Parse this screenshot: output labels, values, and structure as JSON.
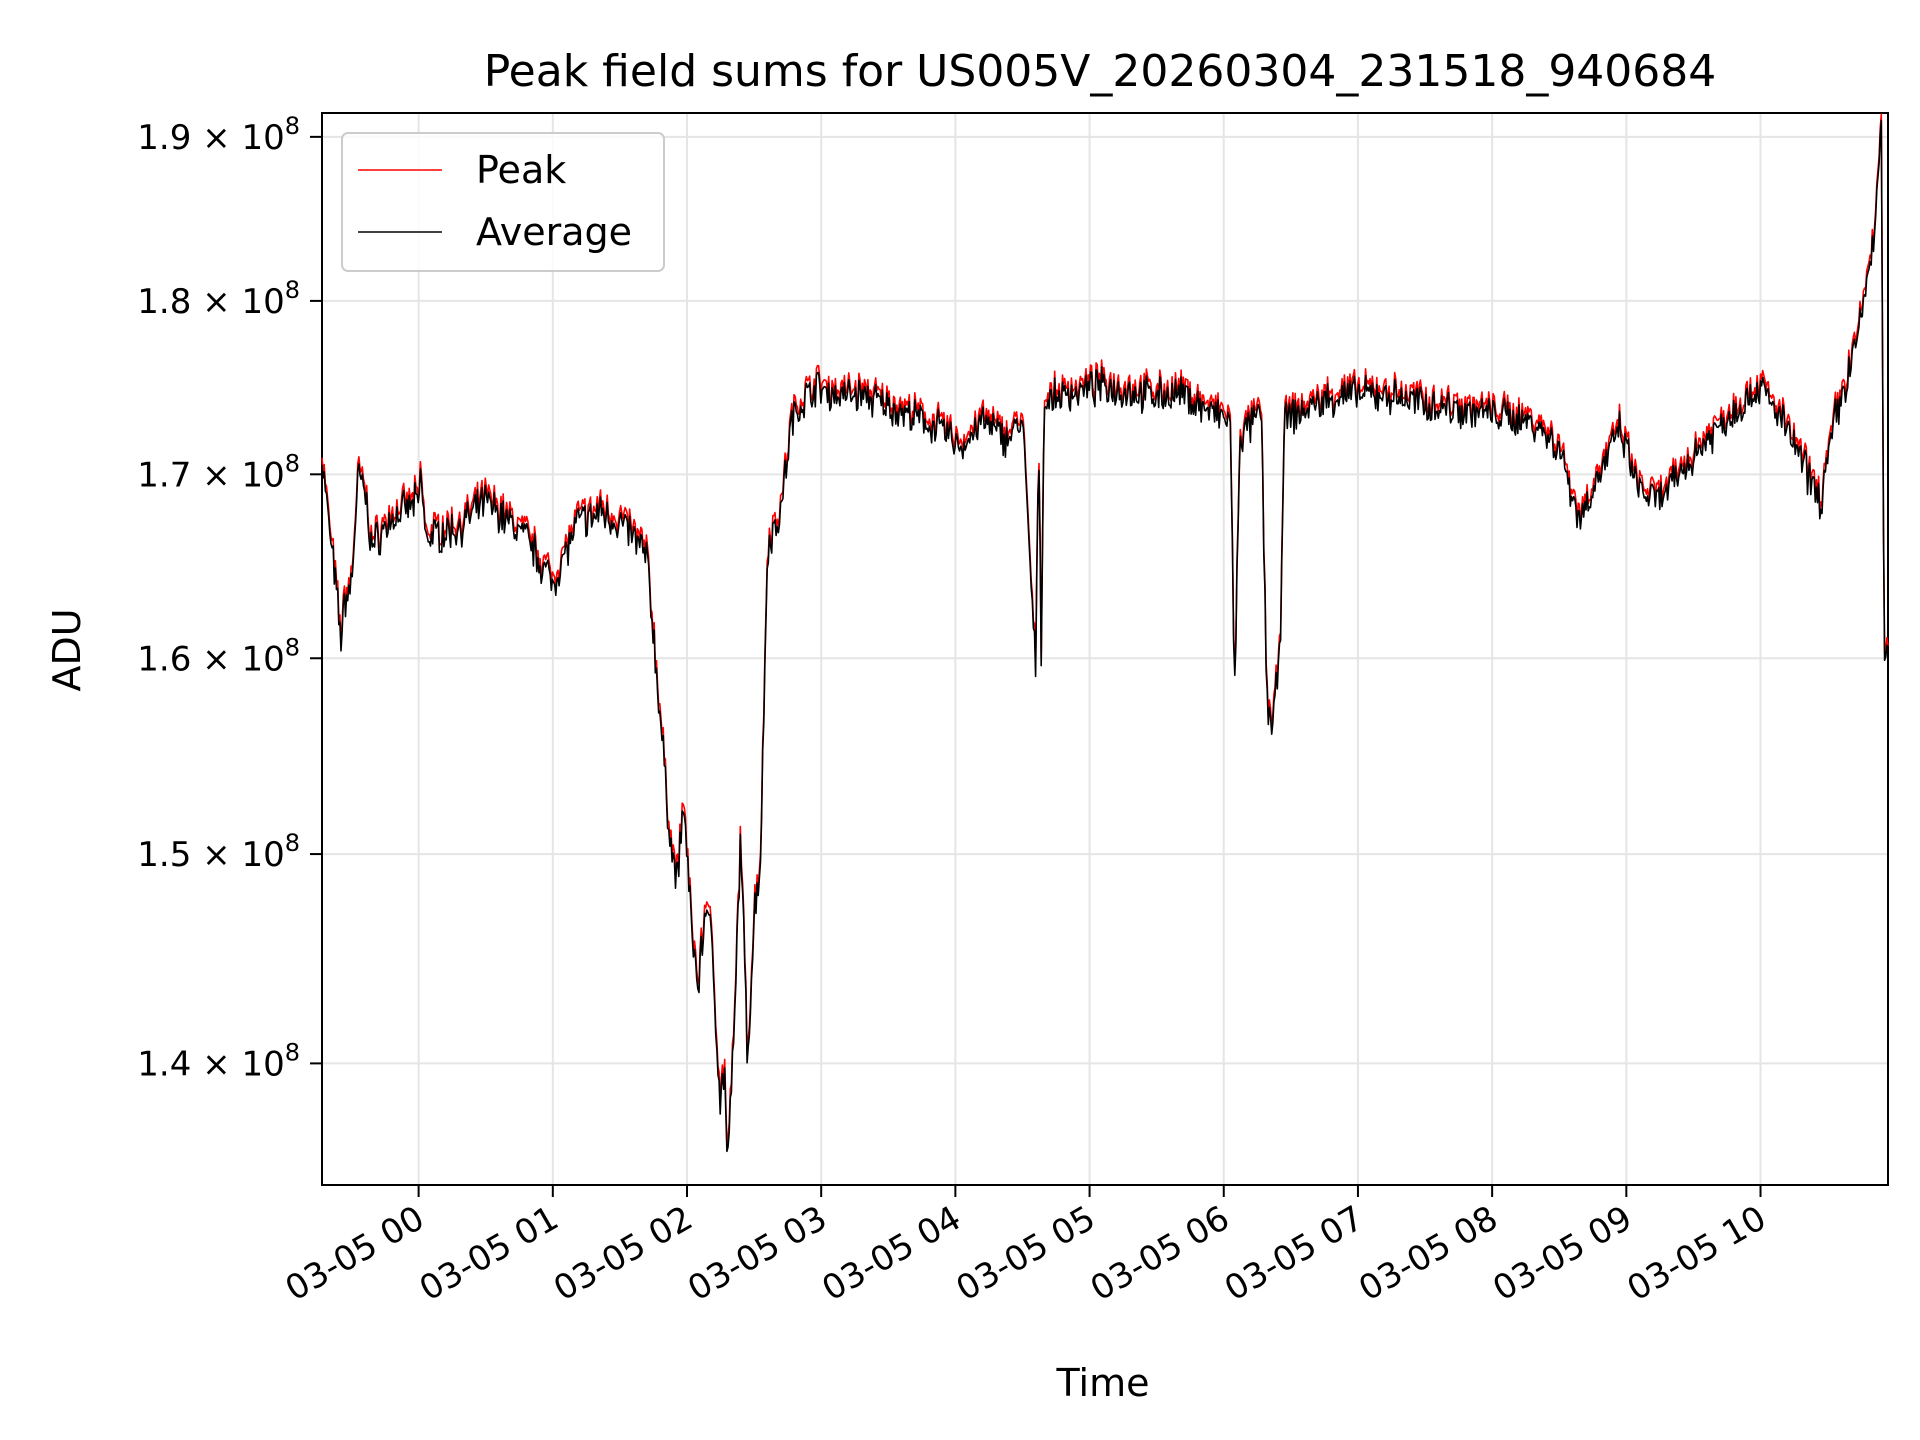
{
  "chart_data": {
    "type": "line",
    "title": "Peak field sums for US005V_20260304_231518_940684",
    "xlabel": "Time",
    "ylabel": "ADU",
    "y_scale": "log",
    "ylim": [
      134500000,
      191500000
    ],
    "xlim_hours": [
      -0.72,
      10.95
    ],
    "grid": true,
    "legend_position": "upper-left",
    "x_ticks": [
      {
        "label": "03-05 00",
        "hour": 0
      },
      {
        "label": "03-05 01",
        "hour": 1
      },
      {
        "label": "03-05 02",
        "hour": 2
      },
      {
        "label": "03-05 03",
        "hour": 3
      },
      {
        "label": "03-05 04",
        "hour": 4
      },
      {
        "label": "03-05 05",
        "hour": 5
      },
      {
        "label": "03-05 06",
        "hour": 6
      },
      {
        "label": "03-05 07",
        "hour": 7
      },
      {
        "label": "03-05 08",
        "hour": 8
      },
      {
        "label": "03-05 09",
        "hour": 9
      },
      {
        "label": "03-05 10",
        "hour": 10
      }
    ],
    "y_ticks": [
      {
        "mantissa": "1.4",
        "exponent": "8",
        "value": 140000000
      },
      {
        "mantissa": "1.5",
        "exponent": "8",
        "value": 150000000
      },
      {
        "mantissa": "1.6",
        "exponent": "8",
        "value": 160000000
      },
      {
        "mantissa": "1.7",
        "exponent": "8",
        "value": 170000000
      },
      {
        "mantissa": "1.8",
        "exponent": "8",
        "value": 180000000
      },
      {
        "mantissa": "1.9",
        "exponent": "8",
        "value": 190000000
      }
    ],
    "tick_times_sign": "×",
    "tick_base": "10",
    "series": [
      {
        "name": "Peak",
        "color": "#ff0000",
        "offset": 400000
      },
      {
        "name": "Average",
        "color": "#000000",
        "offset": 0
      }
    ],
    "anchors": [
      [
        -0.72,
        171000000
      ],
      [
        -0.68,
        168000000
      ],
      [
        -0.62,
        164000000
      ],
      [
        -0.58,
        161000000
      ],
      [
        -0.55,
        163000000
      ],
      [
        -0.5,
        164000000
      ],
      [
        -0.45,
        170000000
      ],
      [
        -0.4,
        169000000
      ],
      [
        -0.35,
        166000000
      ],
      [
        -0.2,
        167500000
      ],
      [
        0.0,
        168500000
      ],
      [
        0.02,
        170000000
      ],
      [
        0.05,
        166500000
      ],
      [
        0.3,
        167000000
      ],
      [
        0.5,
        168500000
      ],
      [
        0.8,
        166500000
      ],
      [
        1.0,
        164000000
      ],
      [
        1.2,
        167500000
      ],
      [
        1.3,
        167500000
      ],
      [
        1.35,
        168000000
      ],
      [
        1.45,
        167500000
      ],
      [
        1.55,
        167000000
      ],
      [
        1.7,
        165500000
      ],
      [
        1.8,
        157000000
      ],
      [
        1.85,
        152500000
      ],
      [
        1.92,
        148500000
      ],
      [
        1.98,
        152500000
      ],
      [
        2.02,
        147500000
      ],
      [
        2.08,
        143500000
      ],
      [
        2.15,
        148000000
      ],
      [
        2.2,
        144000000
      ],
      [
        2.25,
        138000000
      ],
      [
        2.28,
        140000000
      ],
      [
        2.3,
        135000000
      ],
      [
        2.35,
        141000000
      ],
      [
        2.4,
        151000000
      ],
      [
        2.45,
        140000000
      ],
      [
        2.5,
        147000000
      ],
      [
        2.55,
        150000000
      ],
      [
        2.6,
        166000000
      ],
      [
        2.7,
        168000000
      ],
      [
        2.78,
        173000000
      ],
      [
        2.85,
        174000000
      ],
      [
        2.95,
        175000000
      ],
      [
        3.1,
        174500000
      ],
      [
        3.3,
        174500000
      ],
      [
        3.6,
        173500000
      ],
      [
        3.9,
        172500000
      ],
      [
        4.05,
        171500000
      ],
      [
        4.2,
        173000000
      ],
      [
        4.38,
        172000000
      ],
      [
        4.5,
        173000000
      ],
      [
        4.6,
        159000000
      ],
      [
        4.62,
        173000000
      ],
      [
        4.64,
        160000000
      ],
      [
        4.66,
        174000000
      ],
      [
        4.8,
        174500000
      ],
      [
        5.1,
        175000000
      ],
      [
        5.4,
        174500000
      ],
      [
        5.7,
        174500000
      ],
      [
        5.9,
        173500000
      ],
      [
        6.05,
        173000000
      ],
      [
        6.08,
        157500000
      ],
      [
        6.12,
        172000000
      ],
      [
        6.28,
        173500000
      ],
      [
        6.32,
        158000000
      ],
      [
        6.36,
        156500000
      ],
      [
        6.42,
        160000000
      ],
      [
        6.45,
        173000000
      ],
      [
        6.7,
        174000000
      ],
      [
        6.9,
        174500000
      ],
      [
        7.2,
        174500000
      ],
      [
        7.5,
        174000000
      ],
      [
        7.9,
        173500000
      ],
      [
        8.3,
        173000000
      ],
      [
        8.5,
        171500000
      ],
      [
        8.65,
        167500000
      ],
      [
        8.8,
        170000000
      ],
      [
        8.95,
        172500000
      ],
      [
        9.1,
        169000000
      ],
      [
        9.25,
        168500000
      ],
      [
        9.4,
        170000000
      ],
      [
        9.6,
        172000000
      ],
      [
        9.8,
        173500000
      ],
      [
        10.0,
        175000000
      ],
      [
        10.2,
        172500000
      ],
      [
        10.35,
        170000000
      ],
      [
        10.45,
        168500000
      ],
      [
        10.55,
        173000000
      ],
      [
        10.65,
        175500000
      ],
      [
        10.75,
        179000000
      ],
      [
        10.85,
        184000000
      ],
      [
        10.9,
        191000000
      ],
      [
        10.92,
        160500000
      ],
      [
        10.95,
        160000000
      ]
    ]
  }
}
